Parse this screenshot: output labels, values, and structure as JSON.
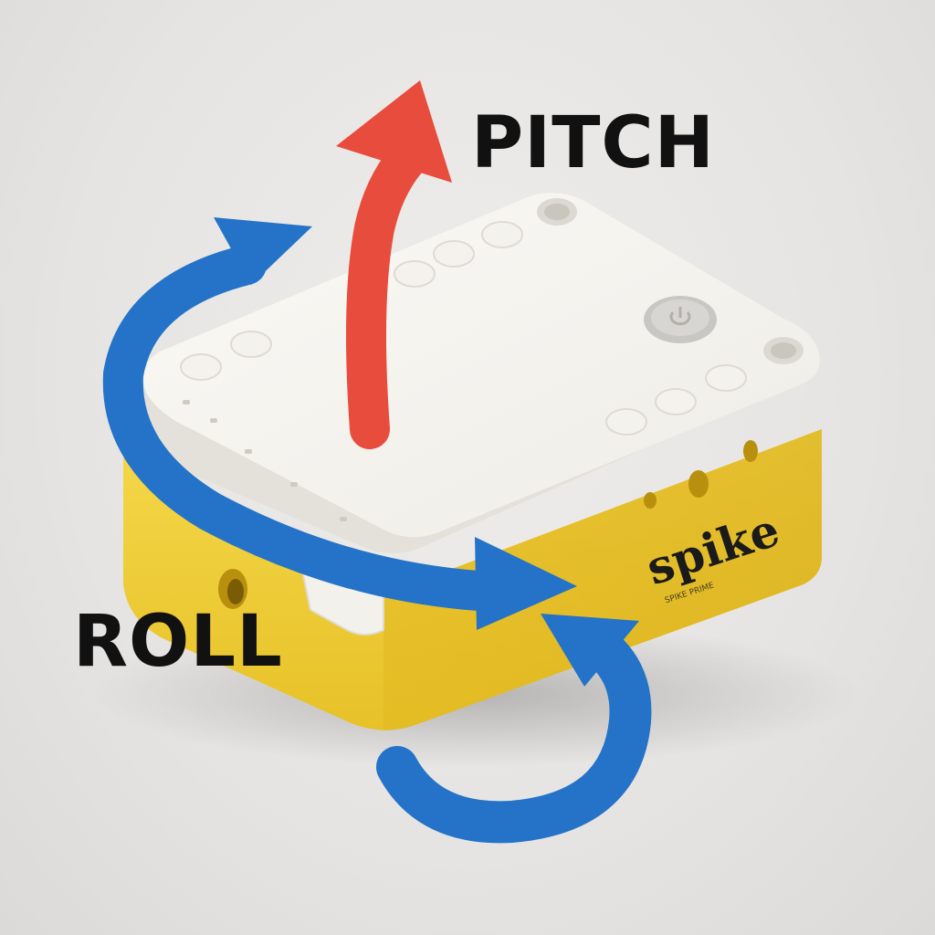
{
  "labels": {
    "pitch": "PITCH",
    "roll": "ROLL"
  },
  "hub": {
    "brand_text": "spike",
    "small_text": "SPIKE PRIME"
  },
  "colors": {
    "pitch_arrow": "#e84c3d",
    "roll_arrows": "#2473c8",
    "hub_top": "#f7f5f0",
    "hub_base": "#f2d43a",
    "background": "#e8e6e4"
  },
  "icons": {
    "power_button": "power-button-icon"
  }
}
